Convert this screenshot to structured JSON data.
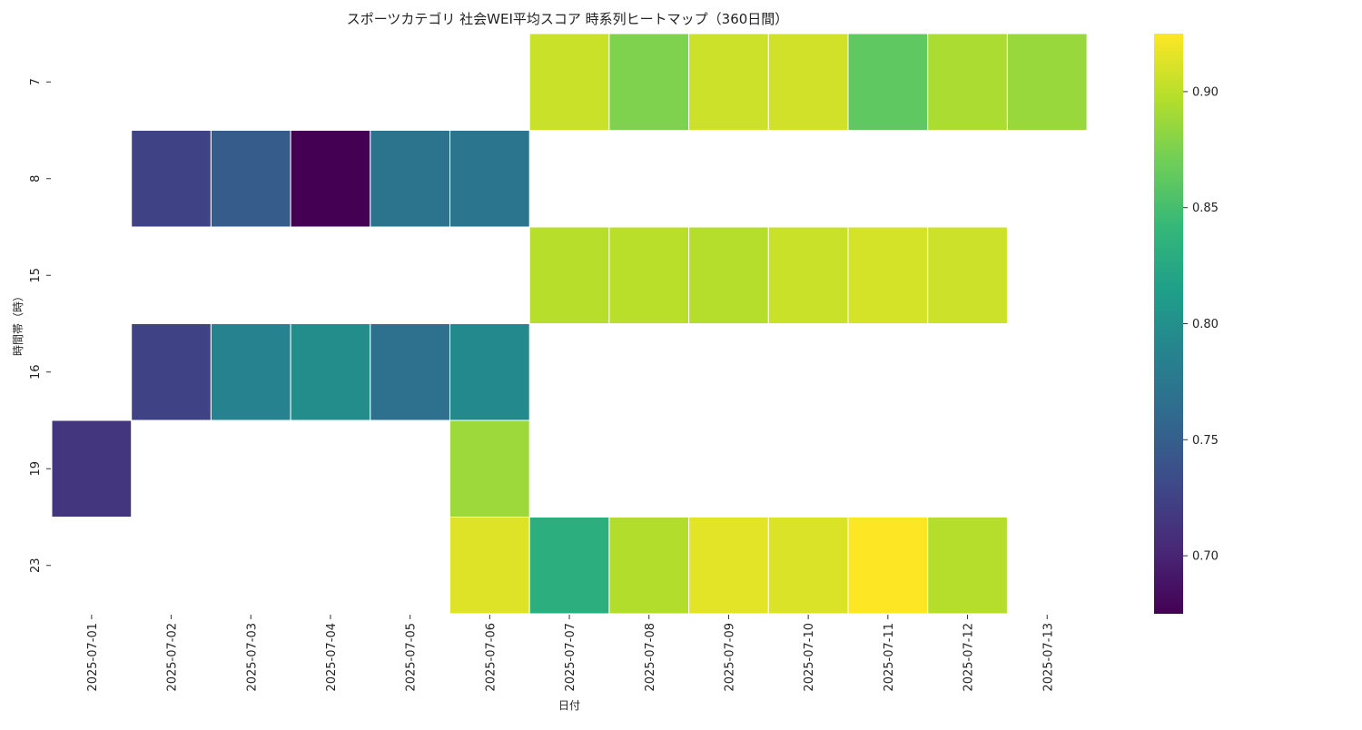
{
  "chart_data": {
    "type": "heatmap",
    "title": "スポーツカテゴリ 社会WEI平均スコア 時系列ヒートマップ（360日間）",
    "xlabel": "日付",
    "ylabel": "時間帯（時）",
    "x": [
      "2025-07-01",
      "2025-07-02",
      "2025-07-03",
      "2025-07-04",
      "2025-07-05",
      "2025-07-06",
      "2025-07-07",
      "2025-07-08",
      "2025-07-09",
      "2025-07-10",
      "2025-07-11",
      "2025-07-12",
      "2025-07-13"
    ],
    "y": [
      "7",
      "8",
      "15",
      "16",
      "19",
      "23"
    ],
    "values": [
      [
        null,
        null,
        null,
        null,
        null,
        null,
        0.905,
        0.876,
        0.906,
        0.908,
        0.862,
        0.893,
        0.886
      ],
      [
        null,
        0.725,
        0.748,
        0.675,
        0.771,
        0.773,
        null,
        null,
        null,
        null,
        null,
        null,
        null
      ],
      [
        null,
        null,
        null,
        null,
        null,
        null,
        0.898,
        0.899,
        0.897,
        0.905,
        0.909,
        0.906,
        null
      ],
      [
        null,
        0.725,
        0.786,
        0.797,
        0.768,
        0.793,
        null,
        null,
        null,
        null,
        null,
        null,
        null
      ],
      [
        0.714,
        null,
        null,
        null,
        null,
        0.888,
        null,
        null,
        null,
        null,
        null,
        null,
        null
      ],
      [
        null,
        null,
        null,
        null,
        null,
        0.913,
        0.832,
        0.896,
        0.915,
        0.912,
        0.925,
        0.897,
        null
      ]
    ],
    "colorscale": "viridis",
    "zlim": [
      0.675,
      0.925
    ],
    "colorbar_ticks": [
      "0.70",
      "0.75",
      "0.80",
      "0.85",
      "0.90"
    ],
    "colorbar_tick_values": [
      0.7,
      0.75,
      0.8,
      0.85,
      0.9
    ],
    "grid": false
  }
}
